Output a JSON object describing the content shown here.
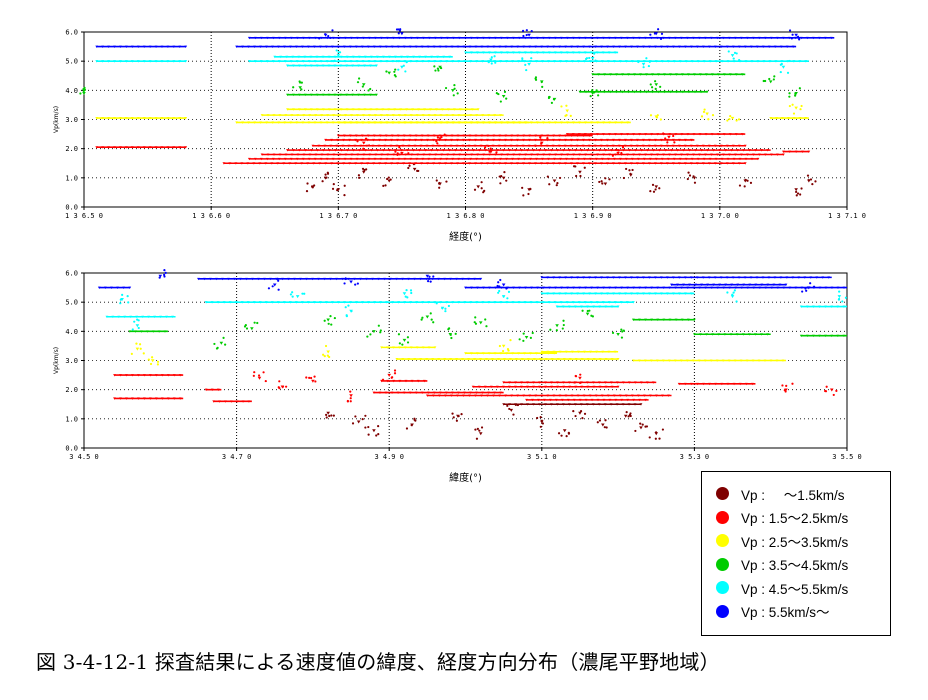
{
  "caption": "図 3-4-12-1  探査結果による速度値の緯度、経度方向分布（濃尾平野地域）",
  "legend": [
    {
      "label": "Vp :     ～1.5km/s",
      "color": "#7f0000"
    },
    {
      "label": "Vp : 1.5～2.5km/s",
      "color": "#ff0000"
    },
    {
      "label": "Vp : 2.5～3.5km/s",
      "color": "#ffff00"
    },
    {
      "label": "Vp : 3.5～4.5km/s",
      "color": "#00cc00"
    },
    {
      "label": "Vp : 4.5～5.5km/s",
      "color": "#00ffff"
    },
    {
      "label": "Vp : 5.5km/s～",
      "color": "#0000ff"
    }
  ],
  "chart_data": [
    {
      "type": "scatter",
      "xlabel": "経度(°)",
      "ylabel": "Vp(km/s)",
      "xlim": [
        136.5,
        137.1
      ],
      "ylim": [
        0,
        6
      ],
      "xticks": [
        "136.50",
        "136.60",
        "136.70",
        "136.80",
        "136.90",
        "137.00",
        "137.10"
      ],
      "yticks": [
        "0.0",
        "1.0",
        "2.0",
        "3.0",
        "4.0",
        "5.0",
        "6.0"
      ],
      "grid": "dotted at 1.0, 4.0 and 136.60/136.70/136.80/136.90/137.00",
      "series": [
        {
          "name": "～1.5km/s",
          "color": "#7f0000",
          "segments": [],
          "points": [
            [
              136.68,
              0.7
            ],
            [
              136.69,
              1.0
            ],
            [
              136.7,
              0.6
            ],
            [
              136.72,
              1.2
            ],
            [
              136.74,
              0.9
            ],
            [
              136.76,
              1.3
            ],
            [
              136.78,
              0.8
            ],
            [
              136.81,
              0.7
            ],
            [
              136.83,
              1.0
            ],
            [
              136.85,
              0.6
            ],
            [
              136.87,
              0.9
            ],
            [
              136.89,
              1.2
            ],
            [
              136.91,
              0.8
            ],
            [
              136.93,
              1.1
            ],
            [
              136.95,
              0.7
            ],
            [
              136.98,
              1.0
            ],
            [
              137.02,
              0.9
            ],
            [
              137.06,
              0.6
            ],
            [
              137.07,
              0.9
            ]
          ]
        },
        {
          "name": "1.5～2.5km/s",
          "color": "#ff0000",
          "segments": [
            [
              136.51,
              136.58,
              2.05
            ],
            [
              136.61,
              137.02,
              1.5
            ],
            [
              136.63,
              137.03,
              1.65
            ],
            [
              136.64,
              137.05,
              1.8
            ],
            [
              136.66,
              137.04,
              1.95
            ],
            [
              136.68,
              137.02,
              2.1
            ],
            [
              136.69,
              136.98,
              2.3
            ],
            [
              136.7,
              136.9,
              2.45
            ],
            [
              136.88,
              137.02,
              2.5
            ],
            [
              137.05,
              137.07,
              1.9
            ]
          ],
          "points": [
            [
              136.72,
              2.2
            ],
            [
              136.75,
              1.85
            ],
            [
              136.78,
              2.35
            ],
            [
              136.82,
              1.9
            ],
            [
              136.86,
              2.2
            ],
            [
              136.92,
              1.85
            ],
            [
              136.96,
              2.4
            ]
          ]
        },
        {
          "name": "2.5～3.5km/s",
          "color": "#ffff00",
          "segments": [
            [
              136.51,
              136.58,
              3.05
            ],
            [
              136.62,
              136.85,
              2.9
            ],
            [
              136.64,
              136.83,
              3.15
            ],
            [
              136.66,
              136.81,
              3.35
            ],
            [
              136.7,
              136.93,
              2.9
            ],
            [
              137.04,
              137.07,
              3.05
            ]
          ],
          "points": [
            [
              136.99,
              3.2
            ],
            [
              137.01,
              3.05
            ],
            [
              136.95,
              3.1
            ],
            [
              136.88,
              3.3
            ],
            [
              137.06,
              3.4
            ]
          ]
        },
        {
          "name": "3.5～4.5km/s",
          "color": "#00cc00",
          "segments": [
            [
              136.66,
              136.73,
              3.85
            ],
            [
              136.9,
              137.02,
              4.55
            ],
            [
              136.89,
              136.99,
              3.95
            ]
          ],
          "points": [
            [
              136.5,
              3.9
            ],
            [
              136.67,
              4.1
            ],
            [
              136.72,
              4.2
            ],
            [
              136.79,
              4.0
            ],
            [
              136.83,
              3.8
            ],
            [
              136.86,
              4.3
            ],
            [
              136.87,
              3.7
            ],
            [
              136.9,
              3.9
            ],
            [
              136.95,
              4.2
            ],
            [
              137.04,
              4.3
            ],
            [
              137.06,
              3.9
            ],
            [
              136.74,
              4.6
            ],
            [
              136.78,
              4.8
            ]
          ]
        },
        {
          "name": "4.5～5.5km/s",
          "color": "#00ffff",
          "segments": [
            [
              136.51,
              136.58,
              5.0
            ],
            [
              136.63,
              137.07,
              5.0
            ],
            [
              136.65,
              136.79,
              5.15
            ],
            [
              136.66,
              136.73,
              4.85
            ],
            [
              136.8,
              136.92,
              5.3
            ]
          ],
          "points": [
            [
              136.7,
              5.2
            ],
            [
              136.75,
              4.8
            ],
            [
              136.85,
              4.9
            ],
            [
              136.9,
              5.1
            ],
            [
              136.94,
              4.9
            ],
            [
              137.01,
              5.2
            ],
            [
              137.05,
              4.8
            ],
            [
              136.82,
              5.05
            ]
          ]
        },
        {
          "name": "5.5km/s～",
          "color": "#0000ff",
          "segments": [
            [
              136.51,
              136.58,
              5.5
            ],
            [
              136.62,
              137.06,
              5.5
            ],
            [
              136.63,
              137.09,
              5.8
            ]
          ],
          "points": [
            [
              136.69,
              5.9
            ],
            [
              136.75,
              5.95
            ],
            [
              136.85,
              5.9
            ],
            [
              136.95,
              5.95
            ],
            [
              137.06,
              5.9
            ]
          ]
        }
      ]
    },
    {
      "type": "scatter",
      "xlabel": "緯度(°)",
      "ylabel": "Vp(km/s)",
      "xlim": [
        34.5,
        35.5
      ],
      "ylim": [
        0,
        6
      ],
      "xticks": [
        "34.50",
        "34.70",
        "34.90",
        "35.10",
        "35.30",
        "35.50"
      ],
      "yticks": [
        "0.0",
        "1.0",
        "2.0",
        "3.0",
        "4.0",
        "5.0",
        "6.0"
      ],
      "grid": "dotted at 34.70/34.90/35.10/35.30",
      "series": [
        {
          "name": "～1.5km/s",
          "color": "#7f0000",
          "segments": [
            [
              35.05,
              35.23,
              1.5
            ]
          ],
          "points": [
            [
              34.82,
              1.2
            ],
            [
              34.86,
              0.9
            ],
            [
              34.88,
              0.6
            ],
            [
              34.93,
              0.8
            ],
            [
              34.99,
              1.1
            ],
            [
              35.02,
              0.5
            ],
            [
              35.06,
              1.3
            ],
            [
              35.1,
              0.9
            ],
            [
              35.13,
              0.6
            ],
            [
              35.15,
              1.2
            ],
            [
              35.18,
              0.8
            ],
            [
              35.21,
              1.1
            ],
            [
              35.23,
              0.7
            ],
            [
              35.25,
              0.5
            ]
          ]
        },
        {
          "name": "1.5～2.5km/s",
          "color": "#ff0000",
          "segments": [
            [
              34.54,
              34.63,
              2.5
            ],
            [
              34.54,
              34.63,
              1.7
            ],
            [
              34.66,
              34.68,
              2.0
            ],
            [
              34.67,
              34.72,
              1.6
            ],
            [
              34.89,
              34.95,
              2.3
            ],
            [
              34.88,
              35.05,
              1.9
            ],
            [
              34.95,
              35.27,
              1.8
            ],
            [
              35.01,
              35.2,
              2.1
            ],
            [
              35.05,
              35.25,
              2.25
            ],
            [
              35.08,
              35.24,
              1.65
            ],
            [
              35.28,
              35.38,
              2.2
            ]
          ],
          "points": [
            [
              34.73,
              2.4
            ],
            [
              34.76,
              2.1
            ],
            [
              34.8,
              2.3
            ],
            [
              34.85,
              1.8
            ],
            [
              34.9,
              2.5
            ],
            [
              35.15,
              2.4
            ],
            [
              35.42,
              2.0
            ],
            [
              35.48,
              2.0
            ]
          ]
        },
        {
          "name": "2.5～3.5km/s",
          "color": "#ffff00",
          "segments": [
            [
              34.89,
              34.96,
              3.45
            ],
            [
              34.91,
              35.2,
              3.05
            ],
            [
              35.0,
              35.12,
              3.25
            ],
            [
              35.1,
              35.2,
              3.3
            ],
            [
              35.22,
              35.42,
              3.0
            ]
          ],
          "points": [
            [
              34.57,
              3.4
            ],
            [
              34.59,
              3.0
            ],
            [
              34.82,
              3.3
            ],
            [
              35.05,
              3.5
            ]
          ]
        },
        {
          "name": "3.5～4.5km/s",
          "color": "#00cc00",
          "segments": [
            [
              34.56,
              34.61,
              4.0
            ],
            [
              35.22,
              35.3,
              4.4
            ],
            [
              35.3,
              35.4,
              3.9
            ],
            [
              35.44,
              35.5,
              3.85
            ]
          ],
          "points": [
            [
              34.68,
              3.6
            ],
            [
              34.72,
              4.1
            ],
            [
              34.82,
              4.4
            ],
            [
              34.88,
              4.0
            ],
            [
              34.92,
              3.7
            ],
            [
              34.95,
              4.5
            ],
            [
              34.98,
              3.9
            ],
            [
              35.02,
              4.3
            ],
            [
              35.08,
              3.8
            ],
            [
              35.12,
              4.2
            ],
            [
              35.16,
              4.6
            ],
            [
              35.2,
              3.9
            ]
          ]
        },
        {
          "name": "4.5～5.5km/s",
          "color": "#00ffff",
          "segments": [
            [
              34.53,
              34.62,
              4.5
            ],
            [
              34.66,
              35.22,
              5.0
            ],
            [
              35.1,
              35.3,
              5.3
            ],
            [
              35.12,
              35.2,
              4.85
            ],
            [
              35.44,
              35.5,
              4.85
            ]
          ],
          "points": [
            [
              34.55,
              5.1
            ],
            [
              34.57,
              4.2
            ],
            [
              34.78,
              5.2
            ],
            [
              34.85,
              4.7
            ],
            [
              34.92,
              5.3
            ],
            [
              34.97,
              4.8
            ],
            [
              35.05,
              5.2
            ],
            [
              35.35,
              5.2
            ],
            [
              35.49,
              5.2
            ]
          ]
        },
        {
          "name": "5.5km/s～",
          "color": "#0000ff",
          "segments": [
            [
              34.52,
              34.56,
              5.5
            ],
            [
              34.65,
              35.02,
              5.8
            ],
            [
              35.0,
              35.5,
              5.5
            ],
            [
              35.1,
              35.48,
              5.85
            ],
            [
              35.27,
              35.42,
              5.6
            ]
          ],
          "points": [
            [
              34.6,
              5.9
            ],
            [
              34.75,
              5.6
            ],
            [
              34.85,
              5.7
            ],
            [
              34.95,
              5.9
            ],
            [
              35.05,
              5.6
            ],
            [
              35.45,
              5.5
            ]
          ]
        }
      ]
    }
  ]
}
